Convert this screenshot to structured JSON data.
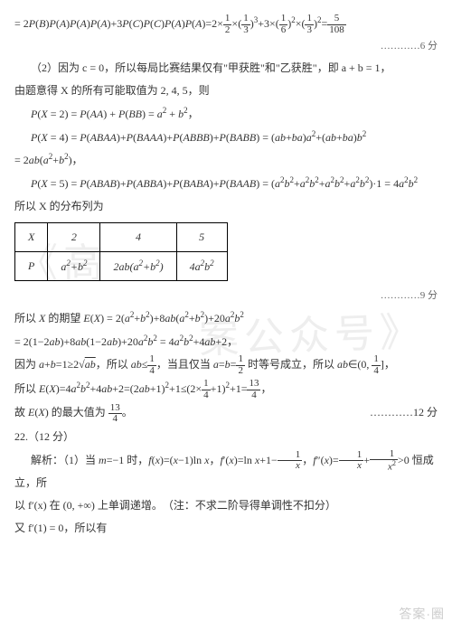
{
  "watermark": {
    "part1": "《高",
    "part2": "案公众号》"
  },
  "eq1": "= 2P(B)P(A)P(A)P(A) + 3P(C)P(C)P(A)P(A) = 2×½×(⅓)³ + 3×(⅙)²×(⅓)² = 5/108",
  "score1": "…………6 分",
  "para2a": "（2）因为 c = 0，所以每局比赛结果仅有\"甲获胜\"和\"乙获胜\"，即 a + b = 1，",
  "para2b": "由题意得 X 的所有可能取值为 2, 4, 5，则",
  "eqP2": "P(X = 2) = P(AA) + P(BB) = a² + b²，",
  "eqP4a": "P(X = 4) = P(ABAA) + P(BAAA) + P(ABBB) + P(BABB) = (ab + ba)a² + (ab + ba)b²",
  "eqP4b": "= 2ab(a² + b²)，",
  "eqP5": "P(X = 5) = P(ABAB) + P(ABBA) + P(BABA) + P(BAAB) = (a²b² + a²b² + a²b² + a²b²)·1 = 4a²b²",
  "tableIntro": "所以 X 的分布列为",
  "table": {
    "head": [
      "X",
      "2",
      "4",
      "5"
    ],
    "row": [
      "P",
      "a² + b²",
      "2ab(a² + b²)",
      "4a²b²"
    ]
  },
  "score2": "…………9 分",
  "eqE1": "所以 X 的期望 E(X) = 2(a² + b²) + 8ab(a² + b²) + 20a²b²",
  "eqE2": "= 2(1 − 2ab) + 8ab(1 − 2ab) + 20a²b² = 4a²b² + 4ab + 2，",
  "eqAB": "因为 a + b = 1 ≥ 2√(ab)，所以 ab ≤ ¼，当且仅当 a = b = ½ 时等号成立，所以 ab ∈ (0, ¼]，",
  "eqEX": "所以 E(X) = 4a²b² + 4ab + 2 = (2ab + 1)² + 1 ≤ (2×¼ + 1)² + 1 = 13/4，",
  "eqMax": "故 E(X) 的最大值为 13/4。",
  "score3": "…………12 分",
  "q22head": "22.（12 分）",
  "q22l1": "解析：（1）当 m = −1 时，f(x) = (x − 1)ln x，f′(x) = ln x + 1 − 1/x，f″(x) = 1/x + 1/x² > 0 恒成立，所",
  "q22l2": "以 f′(x) 在 (0, +∞) 上单调递增。　（注：不求二阶导得单调性不扣分）",
  "q22l3": "又 f′(1) = 0，所以有",
  "footer": "答案·圈"
}
